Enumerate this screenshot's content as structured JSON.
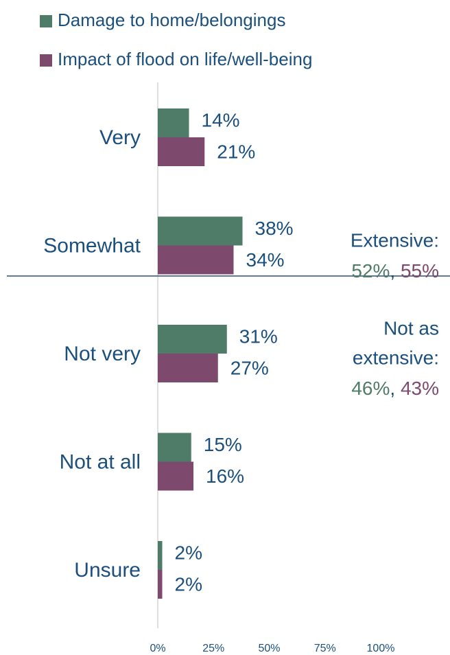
{
  "chart_data": {
    "type": "hbar",
    "categories": [
      "Very",
      "Somewhat",
      "Not very",
      "Not at all",
      "Unsure"
    ],
    "series": [
      {
        "name": "Damage to home/belongings",
        "color": "#4f7b69",
        "values": [
          14,
          38,
          31,
          15,
          2
        ],
        "value_labels": [
          "14%",
          "38%",
          "31%",
          "15%",
          "2%"
        ]
      },
      {
        "name": "Impact of flood on life/well-being",
        "color": "#7d4a6d",
        "values": [
          21,
          34,
          27,
          16,
          2
        ],
        "value_labels": [
          "21%",
          "34%",
          "27%",
          "16%",
          "2%"
        ]
      }
    ],
    "xlim": [
      0,
      100
    ],
    "xticks": [
      {
        "value": 0,
        "label": "0%"
      },
      {
        "value": 25,
        "label": "25%"
      },
      {
        "value": 50,
        "label": "50%"
      },
      {
        "value": 75,
        "label": "75%"
      },
      {
        "value": 100,
        "label": "100%"
      }
    ],
    "legend": "top-left",
    "annotations": [
      {
        "lines": [
          "Extensive:"
        ],
        "parts": [
          "52%",
          "55%"
        ],
        "separator": ", "
      },
      {
        "lines": [
          "Not as",
          "extensive:"
        ],
        "parts": [
          "46%",
          "43%"
        ],
        "separator": ", "
      }
    ]
  }
}
